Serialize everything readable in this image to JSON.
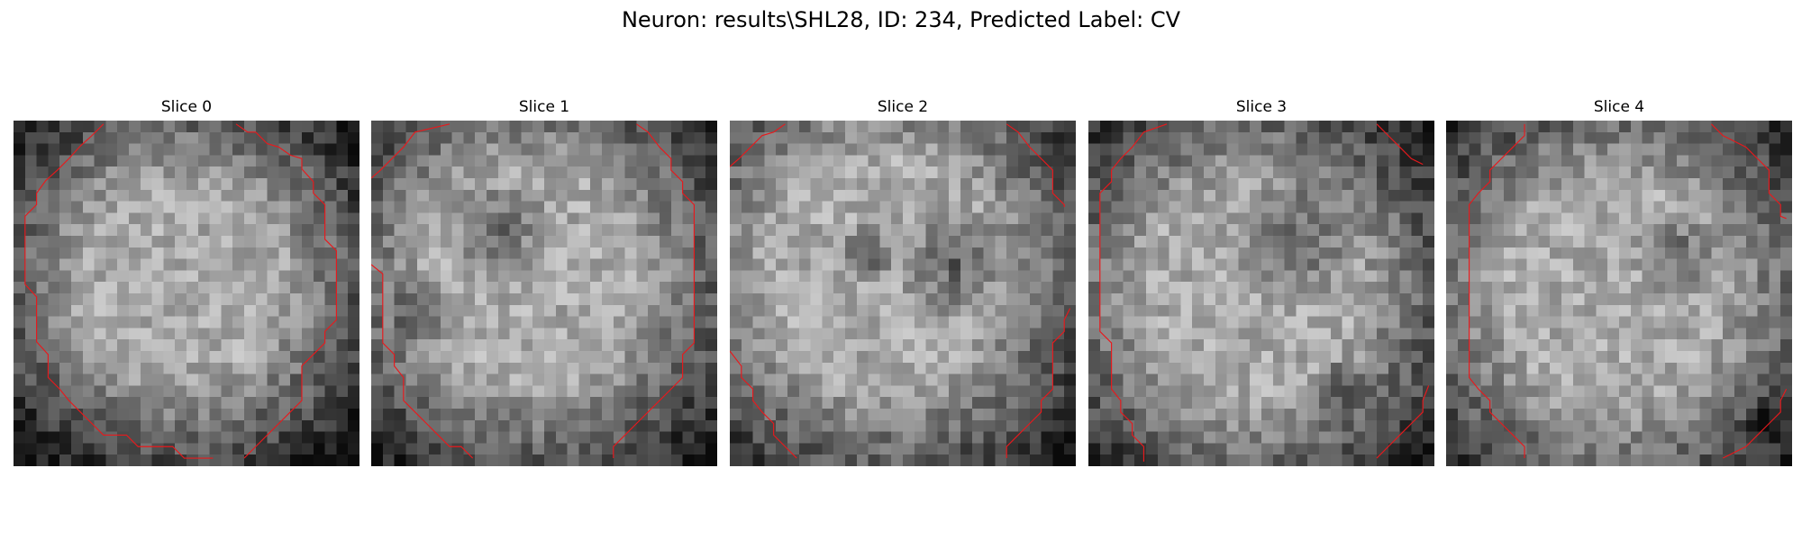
{
  "figure": {
    "title": "Neuron: results\\SHL28, ID: 234, Predicted Label: CV",
    "contour_color": "#e8191c"
  },
  "panels": [
    {
      "title": "Slice 0"
    },
    {
      "title": "Slice 1"
    },
    {
      "title": "Slice 2"
    },
    {
      "title": "Slice 3"
    },
    {
      "title": "Slice 4"
    }
  ]
}
